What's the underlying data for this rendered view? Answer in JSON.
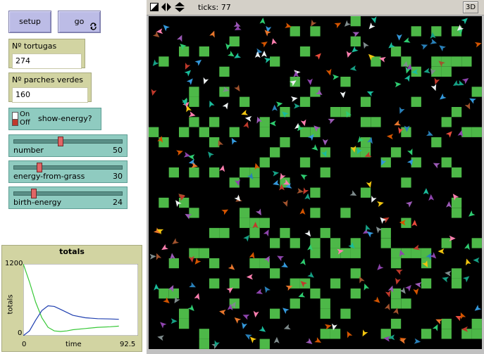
{
  "buttons": {
    "setup": "setup",
    "go": "go"
  },
  "monitors": [
    {
      "label": "Nº tortugas",
      "value": "274"
    },
    {
      "label": "Nº parches verdes",
      "value": "160"
    }
  ],
  "switch": {
    "on_label": "On",
    "off_label": "Off",
    "name": "show-energy?",
    "state": "off"
  },
  "sliders": [
    {
      "name": "number",
      "value": "50",
      "fraction": 0.42
    },
    {
      "name": "energy-from-grass",
      "value": "30",
      "fraction": 0.22
    },
    {
      "name": "birth-energy",
      "value": "24",
      "fraction": 0.17
    }
  ],
  "view": {
    "ticks_label": "ticks: 77",
    "btn_3d": "3D"
  },
  "plot": {
    "title": "totals",
    "ymax_label": "1200",
    "ymin_label": "0",
    "xmin_label": "0",
    "xmax_label": "92.5",
    "xlabel": "time",
    "ylabel": "totals"
  },
  "colors": {
    "grass": "#4db848",
    "background": "#000000",
    "sheep_line": "#1f3fb0",
    "grass_line": "#37c837"
  },
  "chart_data": {
    "type": "line",
    "title": "totals",
    "xlabel": "time",
    "ylabel": "totals",
    "xlim": [
      0,
      92.5
    ],
    "ylim": [
      0,
      1200
    ],
    "series": [
      {
        "color": "#37c837",
        "x": [
          0,
          5,
          10,
          15,
          20,
          25,
          30,
          35,
          40,
          50,
          60,
          70,
          77
        ],
        "y": [
          1200,
          900,
          560,
          300,
          140,
          80,
          70,
          80,
          100,
          120,
          140,
          150,
          160
        ]
      },
      {
        "color": "#1f3fb0",
        "x": [
          0,
          5,
          10,
          15,
          20,
          25,
          30,
          35,
          40,
          50,
          60,
          70,
          77
        ],
        "y": [
          0,
          80,
          260,
          420,
          500,
          490,
          440,
          390,
          340,
          300,
          285,
          280,
          274
        ]
      }
    ]
  }
}
